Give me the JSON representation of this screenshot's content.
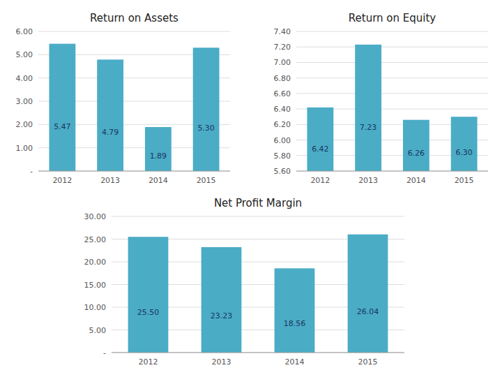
{
  "chart_data": [
    {
      "type": "bar",
      "title": "Return on Assets",
      "categories": [
        "2012",
        "2013",
        "2014",
        "2015"
      ],
      "values": [
        5.47,
        4.79,
        1.89,
        5.3
      ],
      "value_labels": [
        "5.47",
        "4.79",
        "1.89",
        "5.30"
      ],
      "color": "#4BACC6",
      "ylim": [
        0,
        6.0
      ],
      "yticks": [
        {
          "value": 0,
          "label": "-"
        },
        {
          "value": 1.0,
          "label": "1.00"
        },
        {
          "value": 2.0,
          "label": "2.00"
        },
        {
          "value": 3.0,
          "label": "3.00"
        },
        {
          "value": 4.0,
          "label": "4.00"
        },
        {
          "value": 5.0,
          "label": "5.00"
        },
        {
          "value": 6.0,
          "label": "6.00"
        }
      ],
      "grid": true,
      "data_labels": true
    },
    {
      "type": "bar",
      "title": "Return on Equity",
      "categories": [
        "2012",
        "2013",
        "2014",
        "2015"
      ],
      "values": [
        6.42,
        7.23,
        6.26,
        6.3
      ],
      "value_labels": [
        "6.42",
        "7.23",
        "6.26",
        "6.30"
      ],
      "color": "#4BACC6",
      "ylim": [
        5.6,
        7.4
      ],
      "yticks": [
        {
          "value": 5.6,
          "label": "5.60"
        },
        {
          "value": 5.8,
          "label": "5.80"
        },
        {
          "value": 6.0,
          "label": "6.00"
        },
        {
          "value": 6.2,
          "label": "6.20"
        },
        {
          "value": 6.4,
          "label": "6.40"
        },
        {
          "value": 6.6,
          "label": "6.60"
        },
        {
          "value": 6.8,
          "label": "6.80"
        },
        {
          "value": 7.0,
          "label": "7.00"
        },
        {
          "value": 7.2,
          "label": "7.20"
        },
        {
          "value": 7.4,
          "label": "7.40"
        }
      ],
      "grid": true,
      "data_labels": true
    },
    {
      "type": "bar",
      "title": "Net Profit Margin",
      "categories": [
        "2012",
        "2013",
        "2014",
        "2015"
      ],
      "values": [
        25.5,
        23.23,
        18.56,
        26.04
      ],
      "value_labels": [
        "25.50",
        "23.23",
        "18.56",
        "26.04"
      ],
      "color": "#4BACC6",
      "ylim": [
        0,
        30.0
      ],
      "yticks": [
        {
          "value": 0,
          "label": "-"
        },
        {
          "value": 5.0,
          "label": "5.00"
        },
        {
          "value": 10.0,
          "label": "10.00"
        },
        {
          "value": 15.0,
          "label": "15.00"
        },
        {
          "value": 20.0,
          "label": "20.00"
        },
        {
          "value": 25.0,
          "label": "25.00"
        },
        {
          "value": 30.0,
          "label": "30.00"
        }
      ],
      "grid": true,
      "data_labels": true
    }
  ]
}
